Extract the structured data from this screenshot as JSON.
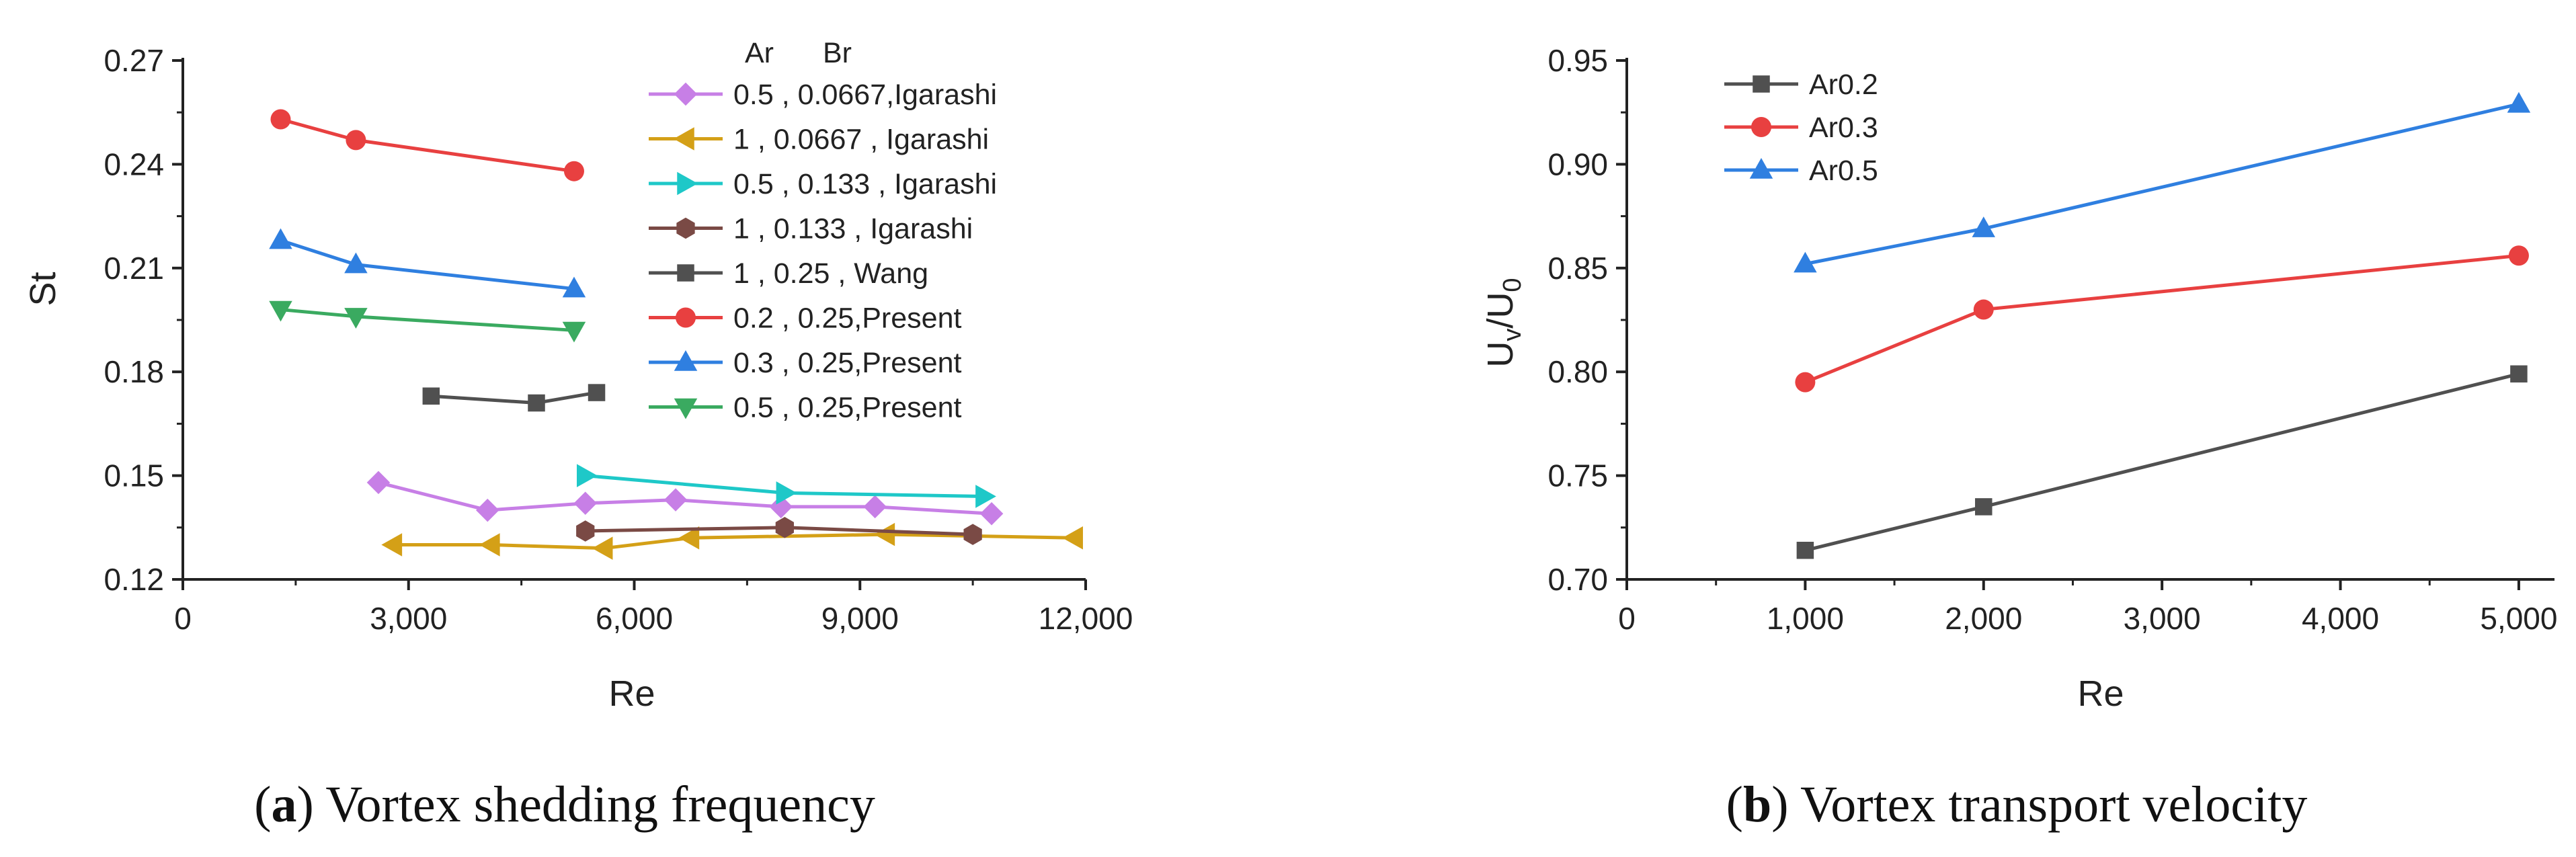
{
  "chart_data": [
    {
      "id": "a",
      "type": "line",
      "caption_letter": "a",
      "caption_text": "Vortex shedding frequency",
      "xlabel": "Re",
      "ylabel": "St",
      "xlim": [
        0,
        12000
      ],
      "ylim": [
        0.12,
        0.27
      ],
      "xticks": [
        0,
        3000,
        6000,
        9000,
        12000
      ],
      "xtick_labels": [
        "0",
        "3,000",
        "6,000",
        "9,000",
        "12,000"
      ],
      "yticks": [
        0.12,
        0.15,
        0.18,
        0.21,
        0.24,
        0.27
      ],
      "ytick_labels": [
        "0.12",
        "0.15",
        "0.18",
        "0.21",
        "0.24",
        "0.27"
      ],
      "legend_header": [
        "Ar",
        "Br"
      ],
      "legend_position": "top-right",
      "series": [
        {
          "name": "0.5 , 0.0667,Igarashi",
          "marker": "diamond",
          "color": "#c77fe6",
          "x": [
            2600,
            4050,
            5350,
            6550,
            7950,
            9200,
            10750
          ],
          "y": [
            0.148,
            0.14,
            0.142,
            0.143,
            0.141,
            0.141,
            0.139
          ]
        },
        {
          "name": "1 , 0.0667 , Igarashi",
          "marker": "triangle-left",
          "color": "#d4a017",
          "x": [
            2800,
            4100,
            5600,
            6750,
            9350,
            11850
          ],
          "y": [
            0.13,
            0.13,
            0.129,
            0.132,
            0.133,
            0.132
          ]
        },
        {
          "name": "0.5 , 0.133 , Igarashi",
          "marker": "triangle-right",
          "color": "#1ec8c8",
          "x": [
            5350,
            8000,
            10650
          ],
          "y": [
            0.15,
            0.145,
            0.144
          ]
        },
        {
          "name": "1 , 0.133 , Igarashi",
          "marker": "hexagon",
          "color": "#7a4a45",
          "x": [
            5350,
            8000,
            10500
          ],
          "y": [
            0.134,
            0.135,
            0.133
          ]
        },
        {
          "name": "1 , 0.25 , Wang",
          "marker": "square",
          "color": "#505050",
          "x": [
            3300,
            4700,
            5500
          ],
          "y": [
            0.173,
            0.171,
            0.174
          ]
        },
        {
          "name": "0.2 , 0.25,Present",
          "marker": "circle",
          "color": "#e84040",
          "x": [
            1300,
            2300,
            5200
          ],
          "y": [
            0.253,
            0.247,
            0.238
          ]
        },
        {
          "name": "0.3 , 0.25,Present",
          "marker": "triangle-up",
          "color": "#2f7fe0",
          "x": [
            1300,
            2300,
            5200
          ],
          "y": [
            0.218,
            0.211,
            0.204
          ]
        },
        {
          "name": "0.5 , 0.25,Present",
          "marker": "triangle-down",
          "color": "#3aaa60",
          "x": [
            1300,
            2300,
            5200
          ],
          "y": [
            0.198,
            0.196,
            0.192
          ]
        }
      ]
    },
    {
      "id": "b",
      "type": "line",
      "caption_letter": "b",
      "caption_text": "Vortex transport velocity",
      "xlabel": "Re",
      "ylabel": "U",
      "ylabel_sub1": "v",
      "ylabel_mid": "/U",
      "ylabel_sub2": "0",
      "xlim": [
        0,
        5200
      ],
      "ylim": [
        0.7,
        0.95
      ],
      "xticks": [
        0,
        1000,
        2000,
        3000,
        4000,
        5000
      ],
      "xtick_labels": [
        "0",
        "1,000",
        "2,000",
        "3,000",
        "4,000",
        "5,000"
      ],
      "yticks": [
        0.7,
        0.75,
        0.8,
        0.85,
        0.9,
        0.95
      ],
      "ytick_labels": [
        "0.70",
        "0.75",
        "0.80",
        "0.85",
        "0.90",
        "0.95"
      ],
      "legend_position": "top-left",
      "series": [
        {
          "name": "Ar0.2",
          "marker": "square",
          "color": "#505050",
          "x": [
            1000,
            2000,
            5000
          ],
          "y": [
            0.714,
            0.735,
            0.799
          ]
        },
        {
          "name": "Ar0.3",
          "marker": "circle",
          "color": "#e84040",
          "x": [
            1000,
            2000,
            5000
          ],
          "y": [
            0.795,
            0.83,
            0.856
          ]
        },
        {
          "name": "Ar0.5",
          "marker": "triangle-up",
          "color": "#2f7fe0",
          "x": [
            1000,
            2000,
            5000
          ],
          "y": [
            0.852,
            0.869,
            0.929
          ]
        }
      ]
    }
  ]
}
